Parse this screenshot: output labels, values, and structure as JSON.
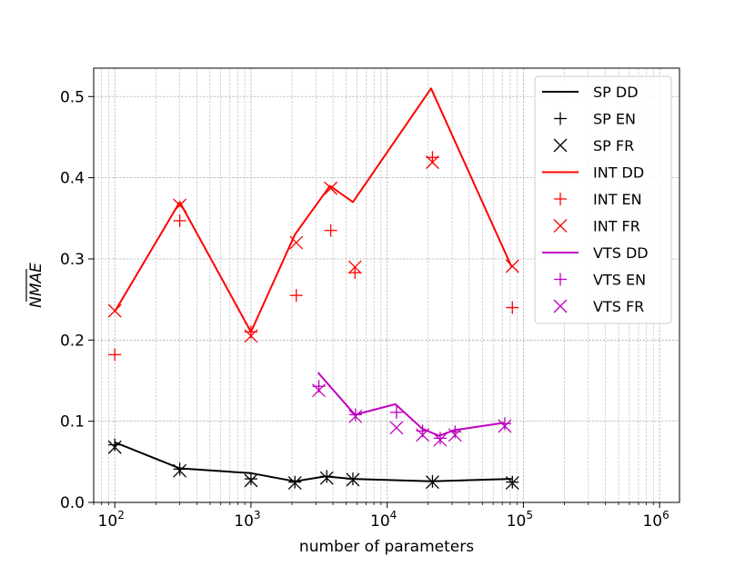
{
  "chart_data": {
    "type": "line",
    "title": "",
    "xlabel": "number of parameters",
    "ylabel": "NMAE",
    "xscale": "log",
    "xlim": [
      70,
      1400000
    ],
    "ylim": [
      0,
      0.535
    ],
    "grid": true,
    "legend_position": "upper-right",
    "x_ticks": [
      {
        "value": 100,
        "base": "10",
        "exp": "2"
      },
      {
        "value": 1000,
        "base": "10",
        "exp": "3"
      },
      {
        "value": 10000,
        "base": "10",
        "exp": "4"
      },
      {
        "value": 100000,
        "base": "10",
        "exp": "5"
      },
      {
        "value": 1000000,
        "base": "10",
        "exp": "6"
      }
    ],
    "y_ticks": [
      {
        "value": 0.0,
        "label": "0.0"
      },
      {
        "value": 0.1,
        "label": "0.1"
      },
      {
        "value": 0.2,
        "label": "0.2"
      },
      {
        "value": 0.3,
        "label": "0.3"
      },
      {
        "value": 0.4,
        "label": "0.4"
      },
      {
        "value": 0.5,
        "label": "0.5"
      }
    ],
    "series": [
      {
        "name": "SP DD",
        "kind": "line",
        "color": "#000000",
        "x": [
          100,
          300,
          1000,
          2100,
          3500,
          5500,
          21000,
          82000
        ],
        "y": [
          0.074,
          0.042,
          0.036,
          0.026,
          0.032,
          0.029,
          0.026,
          0.029
        ]
      },
      {
        "name": "SP EN",
        "kind": "plus",
        "color": "#000000",
        "x": [
          100,
          300,
          1000,
          2100,
          3600,
          5600,
          21500,
          83000
        ],
        "y": [
          0.071,
          0.041,
          0.029,
          0.025,
          0.032,
          0.029,
          0.026,
          0.025
        ]
      },
      {
        "name": "SP FR",
        "kind": "x",
        "color": "#000000",
        "x": [
          100,
          300,
          1000,
          2100,
          3600,
          5600,
          21500,
          83000
        ],
        "y": [
          0.068,
          0.039,
          0.027,
          0.024,
          0.03,
          0.028,
          0.025,
          0.024
        ]
      },
      {
        "name": "INT DD",
        "kind": "line",
        "color": "#ff0000",
        "x": [
          100,
          300,
          1000,
          2100,
          3800,
          5600,
          21000,
          82000
        ],
        "y": [
          0.235,
          0.37,
          0.21,
          0.33,
          0.39,
          0.37,
          0.51,
          0.29
        ]
      },
      {
        "name": "INT EN",
        "kind": "plus",
        "color": "#ff0000",
        "x": [
          100,
          300,
          1000,
          2150,
          3850,
          5800,
          21500,
          83000
        ],
        "y": [
          0.182,
          0.347,
          0.21,
          0.255,
          0.335,
          0.283,
          0.425,
          0.24
        ]
      },
      {
        "name": "INT FR",
        "kind": "x",
        "color": "#ff0000",
        "x": [
          100,
          300,
          1000,
          2150,
          3850,
          5800,
          21500,
          83000
        ],
        "y": [
          0.236,
          0.366,
          0.205,
          0.32,
          0.387,
          0.29,
          0.419,
          0.291
        ]
      },
      {
        "name": "VTS DD",
        "kind": "line",
        "color": "#bf00bf",
        "x": [
          3100,
          5800,
          11500,
          18000,
          24000,
          31000,
          72000
        ],
        "y": [
          0.16,
          0.108,
          0.121,
          0.091,
          0.082,
          0.089,
          0.098
        ]
      },
      {
        "name": "VTS EN",
        "kind": "plus",
        "color": "#bf00bf",
        "x": [
          3150,
          5850,
          11700,
          18200,
          24500,
          31500,
          73000
        ],
        "y": [
          0.143,
          0.108,
          0.111,
          0.088,
          0.079,
          0.087,
          0.097
        ]
      },
      {
        "name": "VTS FR",
        "kind": "x",
        "color": "#bf00bf",
        "x": [
          3150,
          5850,
          11700,
          18200,
          24500,
          31500,
          73000
        ],
        "y": [
          0.138,
          0.106,
          0.092,
          0.083,
          0.077,
          0.083,
          0.094
        ]
      }
    ]
  }
}
